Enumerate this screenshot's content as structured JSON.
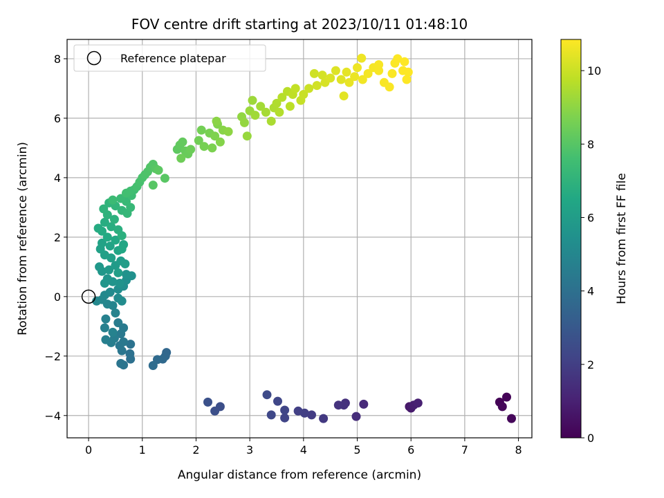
{
  "chart_data": {
    "type": "scatter",
    "title": "FOV centre drift starting at 2023/10/11 01:48:10",
    "xlabel": "Angular distance from reference (arcmin)",
    "ylabel": "Rotation from reference (arcmin)",
    "xlim": [
      -0.4,
      8.25
    ],
    "ylim": [
      -4.75,
      8.65
    ],
    "xticks": [
      0,
      1,
      2,
      3,
      4,
      5,
      6,
      7,
      8
    ],
    "yticks": [
      -4,
      -2,
      0,
      2,
      4,
      6,
      8
    ],
    "grid": true,
    "legend": {
      "position": "top-left",
      "entries": [
        "Reference platepar"
      ]
    },
    "colorbar": {
      "label": "Hours from first FF file",
      "colormap": "viridis",
      "range": [
        0,
        10.85
      ],
      "ticks": [
        0,
        2,
        4,
        6,
        8,
        10
      ]
    },
    "reference_point": {
      "name": "Reference platepar",
      "x": 0,
      "y": 0
    },
    "series": [
      {
        "color_by": "hours",
        "points": [
          [
            7.65,
            -3.55,
            0.05
          ],
          [
            7.78,
            -3.38,
            0.1
          ],
          [
            7.7,
            -3.7,
            0.15
          ],
          [
            7.87,
            -4.1,
            0.2
          ],
          [
            6.0,
            -3.75,
            0.8
          ],
          [
            6.05,
            -3.65,
            0.9
          ],
          [
            6.13,
            -3.58,
            1.0
          ],
          [
            5.97,
            -3.7,
            0.7
          ],
          [
            5.12,
            -3.62,
            1.3
          ],
          [
            4.98,
            -4.03,
            1.4
          ],
          [
            4.78,
            -3.58,
            1.5
          ],
          [
            4.65,
            -3.65,
            1.6
          ],
          [
            4.75,
            -3.65,
            1.55
          ],
          [
            4.37,
            -4.1,
            1.8
          ],
          [
            4.15,
            -3.98,
            1.9
          ],
          [
            4.02,
            -3.92,
            2.0
          ],
          [
            3.9,
            -3.85,
            2.05
          ],
          [
            3.65,
            -4.08,
            2.2
          ],
          [
            3.65,
            -3.82,
            2.25
          ],
          [
            3.52,
            -3.52,
            2.3
          ],
          [
            3.4,
            -3.98,
            2.35
          ],
          [
            3.32,
            -3.3,
            2.4
          ],
          [
            2.45,
            -3.7,
            2.6
          ],
          [
            2.35,
            -3.85,
            2.65
          ],
          [
            2.22,
            -3.55,
            2.7
          ],
          [
            1.45,
            -1.88,
            3.6
          ],
          [
            1.43,
            -2.0,
            3.65
          ],
          [
            1.38,
            -2.1,
            3.7
          ],
          [
            1.28,
            -2.12,
            3.75
          ],
          [
            1.2,
            -2.32,
            3.8
          ],
          [
            0.78,
            -2.1,
            4.0
          ],
          [
            0.77,
            -1.92,
            4.05
          ],
          [
            0.78,
            -1.6,
            4.1
          ],
          [
            0.65,
            -2.3,
            4.15
          ],
          [
            0.6,
            -2.25,
            4.2
          ],
          [
            0.62,
            -1.82,
            4.25
          ],
          [
            0.58,
            -1.65,
            4.3
          ],
          [
            0.65,
            -1.52,
            4.35
          ],
          [
            0.6,
            -1.25,
            4.4
          ],
          [
            0.65,
            -1.05,
            4.45
          ],
          [
            0.55,
            -0.88,
            4.5
          ],
          [
            0.48,
            -1.4,
            4.55
          ],
          [
            0.42,
            -1.55,
            4.6
          ],
          [
            0.32,
            -1.45,
            4.65
          ],
          [
            0.3,
            -1.05,
            4.7
          ],
          [
            0.32,
            -0.75,
            4.75
          ],
          [
            0.45,
            -1.2,
            4.8
          ],
          [
            0.5,
            -0.55,
            4.85
          ],
          [
            0.45,
            -0.3,
            4.9
          ],
          [
            0.35,
            -0.25,
            4.95
          ],
          [
            0.25,
            -0.1,
            5.0
          ],
          [
            0.15,
            -0.15,
            5.05
          ],
          [
            0.3,
            0.05,
            5.1
          ],
          [
            0.4,
            0.15,
            5.15
          ],
          [
            0.55,
            -0.05,
            5.2
          ],
          [
            0.62,
            -0.15,
            5.25
          ],
          [
            0.55,
            0.25,
            5.3
          ],
          [
            0.65,
            0.35,
            5.35
          ],
          [
            0.7,
            0.55,
            5.4
          ],
          [
            0.8,
            0.7,
            5.45
          ],
          [
            0.7,
            0.75,
            5.5
          ],
          [
            0.58,
            0.45,
            5.55
          ],
          [
            0.45,
            0.5,
            5.6
          ],
          [
            0.35,
            0.6,
            5.65
          ],
          [
            0.3,
            0.45,
            5.7
          ],
          [
            0.25,
            0.85,
            5.75
          ],
          [
            0.2,
            1.0,
            5.8
          ],
          [
            0.38,
            0.9,
            5.85
          ],
          [
            0.5,
            1.05,
            5.9
          ],
          [
            0.6,
            1.2,
            5.95
          ],
          [
            0.68,
            1.1,
            6.0
          ],
          [
            0.55,
            0.8,
            6.05
          ],
          [
            0.42,
            1.3,
            6.1
          ],
          [
            0.3,
            1.4,
            6.15
          ],
          [
            0.22,
            1.6,
            6.2
          ],
          [
            0.25,
            1.8,
            6.25
          ],
          [
            0.4,
            1.7,
            6.3
          ],
          [
            0.55,
            1.55,
            6.35
          ],
          [
            0.65,
            1.75,
            6.4
          ],
          [
            0.62,
            1.6,
            6.45
          ],
          [
            0.5,
            1.9,
            6.5
          ],
          [
            0.35,
            2.0,
            6.55
          ],
          [
            0.25,
            2.2,
            6.6
          ],
          [
            0.18,
            2.3,
            6.65
          ],
          [
            0.3,
            2.5,
            6.7
          ],
          [
            0.42,
            2.35,
            6.75
          ],
          [
            0.55,
            2.25,
            6.8
          ],
          [
            0.62,
            2.05,
            6.85
          ],
          [
            0.48,
            2.6,
            6.9
          ],
          [
            0.35,
            2.75,
            6.95
          ],
          [
            0.28,
            2.95,
            7.0
          ],
          [
            0.38,
            3.15,
            7.05
          ],
          [
            0.5,
            3.05,
            7.1
          ],
          [
            0.62,
            2.9,
            7.15
          ],
          [
            0.72,
            2.8,
            7.2
          ],
          [
            0.78,
            3.0,
            7.25
          ],
          [
            0.7,
            3.2,
            7.3
          ],
          [
            0.6,
            3.3,
            7.35
          ],
          [
            0.45,
            3.25,
            7.4
          ],
          [
            0.8,
            3.4,
            7.45
          ],
          [
            0.85,
            3.6,
            7.5
          ],
          [
            0.78,
            3.55,
            7.55
          ],
          [
            0.7,
            3.48,
            7.6
          ],
          [
            0.9,
            3.7,
            7.65
          ],
          [
            0.95,
            3.85,
            7.7
          ],
          [
            1.0,
            4.0,
            7.75
          ],
          [
            1.05,
            4.1,
            7.8
          ],
          [
            1.1,
            4.2,
            7.85
          ],
          [
            1.15,
            4.35,
            7.9
          ],
          [
            1.2,
            4.45,
            7.95
          ],
          [
            1.25,
            4.3,
            8.0
          ],
          [
            1.2,
            3.75,
            8.0
          ],
          [
            1.42,
            3.98,
            8.05
          ],
          [
            1.3,
            4.25,
            8.1
          ],
          [
            1.65,
            4.95,
            8.15
          ],
          [
            1.7,
            5.1,
            8.2
          ],
          [
            1.75,
            5.2,
            8.25
          ],
          [
            1.8,
            4.9,
            8.3
          ],
          [
            1.85,
            4.8,
            8.35
          ],
          [
            1.9,
            4.95,
            8.4
          ],
          [
            1.72,
            4.65,
            8.45
          ],
          [
            2.05,
            5.25,
            8.5
          ],
          [
            2.1,
            5.6,
            8.55
          ],
          [
            2.15,
            5.05,
            8.6
          ],
          [
            2.25,
            5.5,
            8.65
          ],
          [
            2.3,
            5.0,
            8.7
          ],
          [
            2.35,
            5.4,
            8.75
          ],
          [
            2.4,
            5.8,
            8.8
          ],
          [
            2.45,
            5.2,
            8.85
          ],
          [
            2.5,
            5.6,
            8.9
          ],
          [
            2.38,
            5.9,
            8.95
          ],
          [
            2.6,
            5.55,
            9.0
          ],
          [
            2.85,
            6.05,
            9.05
          ],
          [
            2.9,
            5.85,
            9.1
          ],
          [
            2.95,
            5.4,
            9.15
          ],
          [
            3.0,
            6.25,
            9.2
          ],
          [
            3.05,
            6.6,
            9.25
          ],
          [
            3.1,
            6.1,
            9.3
          ],
          [
            3.2,
            6.4,
            9.35
          ],
          [
            3.3,
            6.2,
            9.4
          ],
          [
            3.4,
            5.9,
            9.45
          ],
          [
            3.45,
            6.35,
            9.5
          ],
          [
            3.5,
            6.5,
            9.55
          ],
          [
            3.55,
            6.2,
            9.6
          ],
          [
            3.6,
            6.7,
            9.65
          ],
          [
            3.7,
            6.9,
            9.7
          ],
          [
            3.75,
            6.4,
            9.75
          ],
          [
            3.8,
            6.8,
            9.8
          ],
          [
            3.85,
            7.0,
            9.85
          ],
          [
            3.95,
            6.6,
            9.9
          ],
          [
            4.0,
            6.8,
            9.95
          ],
          [
            4.1,
            7.0,
            10.0
          ],
          [
            4.2,
            7.5,
            10.05
          ],
          [
            4.25,
            7.1,
            10.1
          ],
          [
            4.35,
            7.45,
            10.15
          ],
          [
            4.4,
            7.2,
            10.2
          ],
          [
            4.5,
            7.35,
            10.25
          ],
          [
            4.6,
            7.6,
            10.3
          ],
          [
            4.7,
            7.3,
            10.35
          ],
          [
            4.75,
            6.75,
            10.4
          ],
          [
            4.8,
            7.55,
            10.45
          ],
          [
            4.85,
            7.2,
            10.5
          ],
          [
            4.95,
            7.4,
            10.55
          ],
          [
            5.0,
            7.7,
            10.6
          ],
          [
            5.1,
            7.3,
            10.65
          ],
          [
            5.2,
            7.5,
            10.7
          ],
          [
            5.3,
            7.7,
            10.72
          ],
          [
            5.4,
            7.6,
            10.74
          ],
          [
            5.5,
            7.2,
            10.76
          ],
          [
            5.6,
            7.05,
            10.78
          ],
          [
            5.65,
            7.5,
            10.8
          ],
          [
            5.7,
            7.85,
            10.82
          ],
          [
            5.75,
            8.0,
            10.84
          ],
          [
            5.85,
            7.6,
            10.85
          ],
          [
            5.92,
            7.3,
            10.85
          ],
          [
            5.88,
            7.9,
            10.85
          ],
          [
            5.95,
            7.55,
            10.85
          ],
          [
            5.08,
            8.02,
            10.6
          ],
          [
            5.4,
            7.8,
            10.74
          ]
        ]
      }
    ]
  }
}
